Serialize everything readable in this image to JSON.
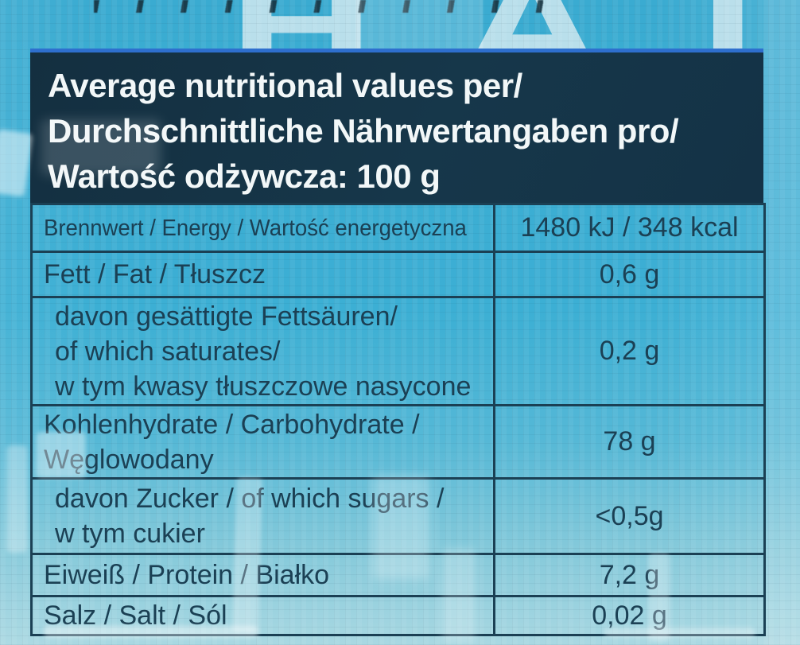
{
  "background": {
    "partial_word": "HAT",
    "letters": [
      "H",
      "A",
      "T"
    ]
  },
  "header": {
    "lines": [
      "Average nutritional values per/",
      "Durchschnittliche Nährwertangaben pro/",
      "Wartość odżywcza: 100 g"
    ]
  },
  "table": {
    "rows": [
      {
        "label_lines": [
          "Brennwert / Energy / Wartość energetyczna"
        ],
        "value": "1480 kJ / 348 kcal",
        "indent": false
      },
      {
        "label_lines": [
          "Fett / Fat / Tłuszcz"
        ],
        "value": "0,6 g",
        "indent": false
      },
      {
        "label_lines": [
          "davon gesättigte Fettsäuren/",
          "of which saturates/",
          "w tym kwasy tłuszczowe nasycone"
        ],
        "value": "0,2 g",
        "indent": true
      },
      {
        "label_lines": [
          "Kohlenhydrate / Carbohydrate /",
          "Węglowodany"
        ],
        "value": "78 g",
        "indent": false
      },
      {
        "label_lines": [
          "davon Zucker / of which sugars /",
          "w tym cukier"
        ],
        "value": "<0,5g",
        "indent": true
      },
      {
        "label_lines": [
          "Eiweiß / Protein / Białko"
        ],
        "value": "7,2 g",
        "indent": false
      },
      {
        "label_lines": [
          "Salz / Salt / Sól"
        ],
        "value": "0,02 g",
        "indent": false
      }
    ]
  },
  "colors": {
    "ink": "#1b4054",
    "header-bg": "#16374a",
    "header-text": "#f2f7f8",
    "accent-line": "#2e6fce",
    "bg-top": "#3aabd1",
    "bg-bottom": "#a9d8e2",
    "pale-letters": "#c7e5ee"
  }
}
